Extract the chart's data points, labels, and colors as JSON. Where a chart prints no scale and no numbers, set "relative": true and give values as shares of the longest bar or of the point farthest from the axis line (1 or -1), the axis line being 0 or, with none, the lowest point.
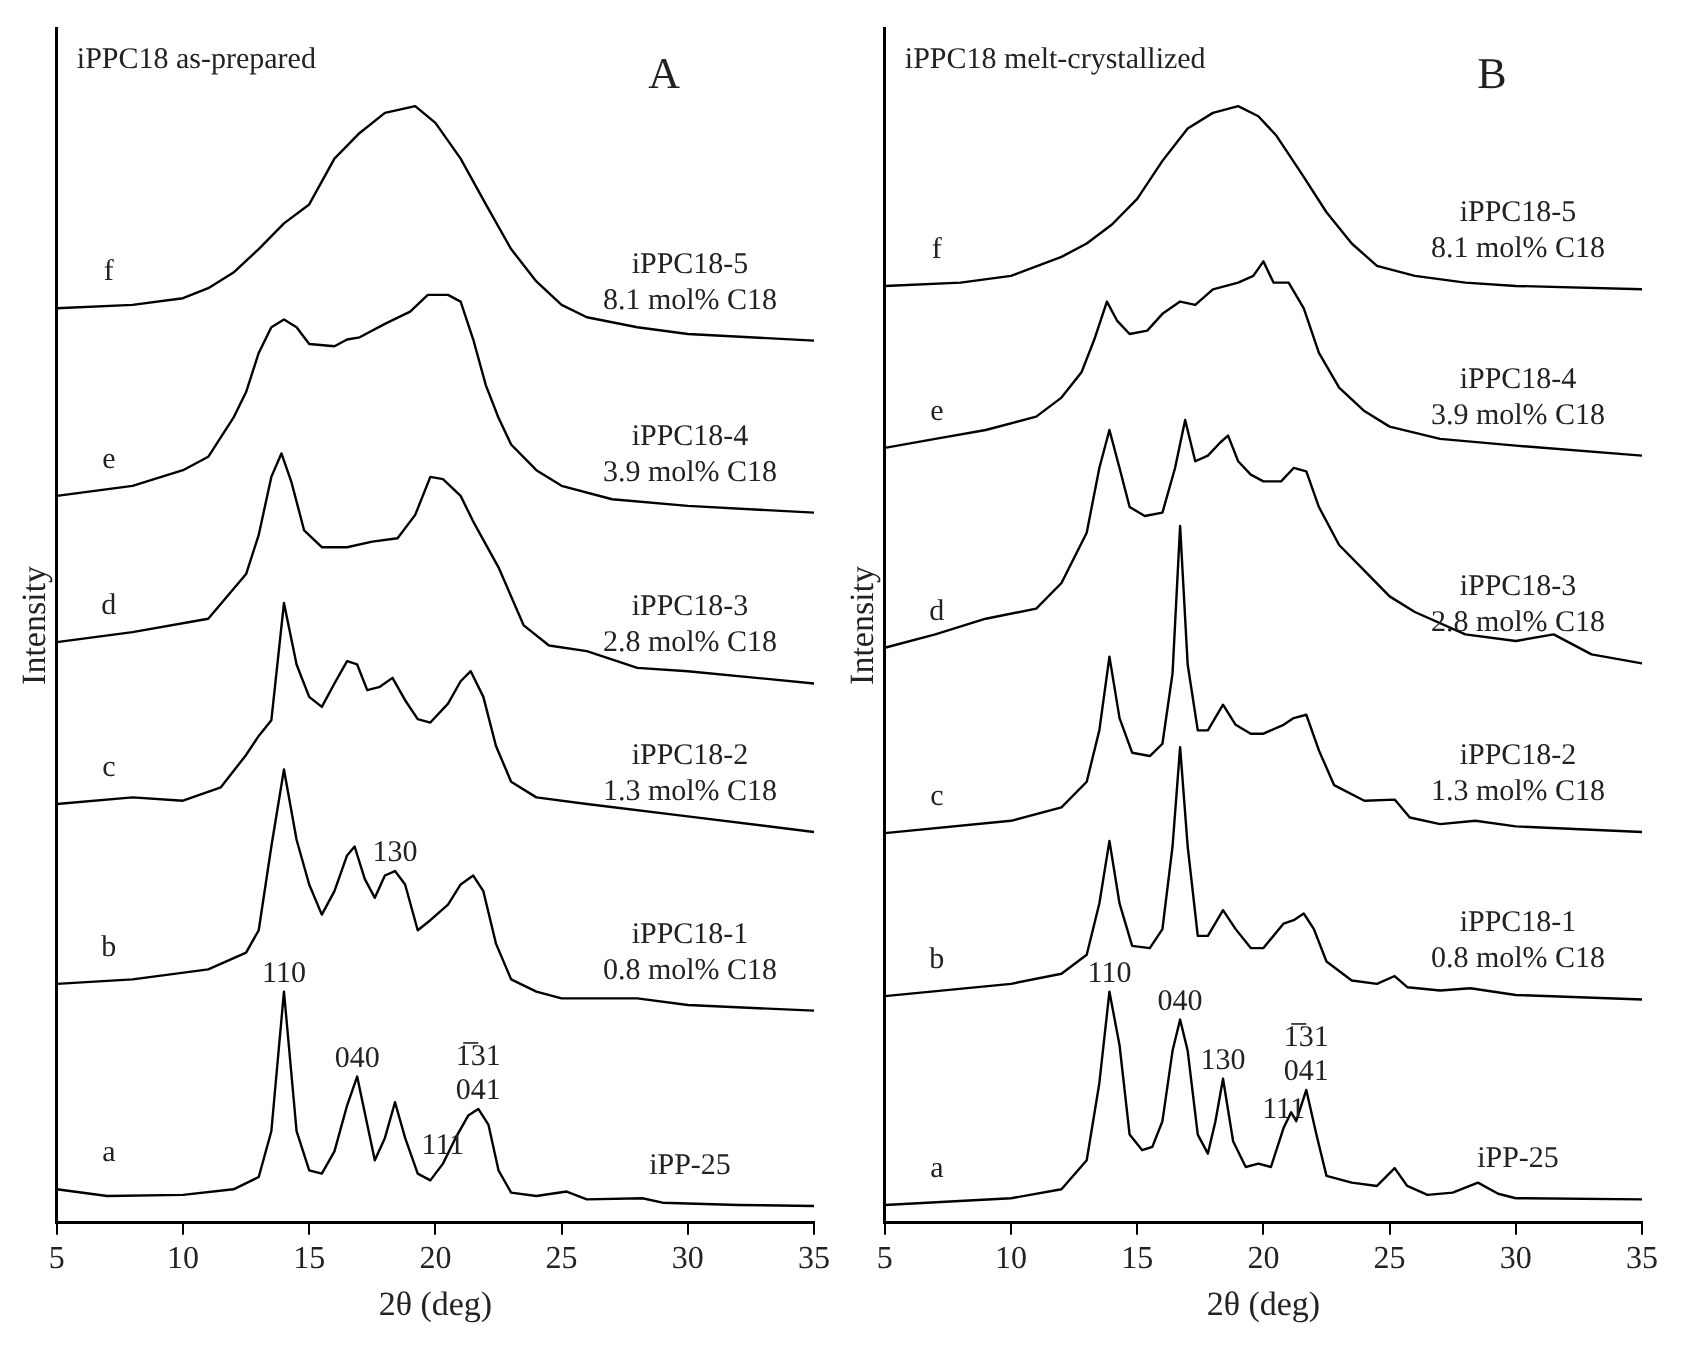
{
  "chart_data": [
    {
      "type": "line",
      "title": "iPPC18 as-prepared",
      "xlabel": "2θ (deg)",
      "ylabel": "Intensity",
      "relative": true,
      "xlim": [
        5,
        35
      ],
      "xticks": [
        5,
        10,
        15,
        20,
        25,
        30,
        35
      ],
      "tick_labels": "x",
      "grid": false,
      "legend": false,
      "marker": "none",
      "line_style": "solid",
      "annotations": [
        "A",
        "iPP-25",
        "iPPC18-1\n0.8 mol% C18",
        "iPPC18-2\n1.3 mol% C18",
        "iPPC18-3\n2.8 mol% C18",
        "iPPC18-4\n3.9 mol% C18",
        "iPPC18-5\n8.1 mol% C18",
        {
          "text": "110",
          "x": 14,
          "y": 0.207
        },
        {
          "text": "040",
          "x": 16.9,
          "y": 0.131
        },
        {
          "text": "111",
          "x": 20.3,
          "y": 0.053
        },
        {
          "text": "1̅31\n041",
          "x": 21.7,
          "y": 0.102
        },
        {
          "text": "130",
          "x": 18.4,
          "y": 0.315
        }
      ],
      "series": [
        {
          "name": "a",
          "color": "#000000",
          "x": [
            5,
            7,
            10,
            12,
            13,
            13.5,
            14,
            14.5,
            15,
            15.5,
            16,
            16.5,
            16.9,
            17.3,
            17.6,
            18,
            18.4,
            18.8,
            19.3,
            19.8,
            20.3,
            20.8,
            21.3,
            21.7,
            22.1,
            22.5,
            23,
            24,
            25.2,
            26,
            28.2,
            29,
            32,
            35
          ],
          "values": [
            0.03,
            0.024,
            0.025,
            0.03,
            0.041,
            0.082,
            0.207,
            0.082,
            0.047,
            0.044,
            0.064,
            0.105,
            0.131,
            0.088,
            0.056,
            0.076,
            0.108,
            0.076,
            0.044,
            0.038,
            0.053,
            0.076,
            0.096,
            0.102,
            0.088,
            0.047,
            0.027,
            0.024,
            0.028,
            0.021,
            0.022,
            0.018,
            0.016,
            0.015
          ]
        },
        {
          "name": "b",
          "color": "#000000",
          "x": [
            5,
            8,
            11,
            12.5,
            13,
            13.5,
            14,
            14.5,
            15,
            15.5,
            16,
            16.5,
            16.8,
            17.2,
            17.6,
            18,
            18.4,
            18.8,
            19.3,
            19.8,
            20.5,
            21,
            21.5,
            21.9,
            22.4,
            23,
            24,
            25,
            28,
            30,
            35
          ],
          "values": [
            0.214,
            0.218,
            0.227,
            0.242,
            0.262,
            0.337,
            0.406,
            0.343,
            0.303,
            0.276,
            0.297,
            0.329,
            0.337,
            0.308,
            0.291,
            0.311,
            0.315,
            0.303,
            0.262,
            0.271,
            0.285,
            0.303,
            0.311,
            0.297,
            0.25,
            0.218,
            0.207,
            0.201,
            0.201,
            0.195,
            0.19
          ]
        },
        {
          "name": "c",
          "color": "#000000",
          "x": [
            5,
            8,
            10,
            11.5,
            12.5,
            13,
            13.5,
            14,
            14.5,
            15,
            15.5,
            16,
            16.5,
            16.9,
            17.3,
            17.8,
            18.3,
            18.8,
            19.3,
            19.8,
            20.5,
            21,
            21.4,
            21.9,
            22.4,
            23,
            24,
            26,
            30,
            35
          ],
          "values": [
            0.375,
            0.381,
            0.378,
            0.39,
            0.419,
            0.436,
            0.45,
            0.555,
            0.5,
            0.471,
            0.462,
            0.483,
            0.503,
            0.5,
            0.477,
            0.48,
            0.488,
            0.468,
            0.451,
            0.448,
            0.465,
            0.485,
            0.494,
            0.471,
            0.427,
            0.395,
            0.381,
            0.375,
            0.364,
            0.35
          ]
        },
        {
          "name": "d",
          "color": "#000000",
          "x": [
            5,
            8,
            11,
            12.5,
            13,
            13.5,
            13.9,
            14.3,
            14.8,
            15.5,
            16.5,
            17.5,
            18.5,
            19.2,
            19.8,
            20.3,
            21,
            21.5,
            22.5,
            23.5,
            24.5,
            26,
            28,
            30,
            35
          ],
          "values": [
            0.52,
            0.529,
            0.541,
            0.581,
            0.616,
            0.668,
            0.689,
            0.663,
            0.62,
            0.605,
            0.605,
            0.61,
            0.613,
            0.634,
            0.668,
            0.666,
            0.651,
            0.628,
            0.587,
            0.535,
            0.517,
            0.512,
            0.497,
            0.494,
            0.483
          ]
        },
        {
          "name": "e",
          "color": "#000000",
          "x": [
            5,
            8,
            10,
            11,
            12,
            12.5,
            13,
            13.5,
            14,
            14.5,
            15,
            16,
            16.5,
            17,
            18,
            19,
            19.7,
            20.5,
            21,
            21.5,
            22,
            22.5,
            23,
            24,
            25,
            27,
            30,
            35
          ],
          "values": [
            0.651,
            0.66,
            0.674,
            0.686,
            0.721,
            0.744,
            0.779,
            0.802,
            0.809,
            0.802,
            0.787,
            0.785,
            0.791,
            0.793,
            0.805,
            0.816,
            0.831,
            0.831,
            0.825,
            0.791,
            0.75,
            0.721,
            0.697,
            0.674,
            0.66,
            0.648,
            0.642,
            0.636
          ]
        },
        {
          "name": "f",
          "color": "#000000",
          "x": [
            5,
            8,
            10,
            11,
            12,
            13,
            14,
            15,
            16,
            17,
            18,
            19.2,
            20,
            21,
            22,
            23,
            24,
            25,
            26,
            28,
            30,
            35
          ],
          "values": [
            0.819,
            0.822,
            0.828,
            0.837,
            0.851,
            0.872,
            0.895,
            0.912,
            0.953,
            0.976,
            0.994,
            1,
            0.985,
            0.953,
            0.912,
            0.872,
            0.843,
            0.822,
            0.811,
            0.802,
            0.796,
            0.79
          ]
        }
      ]
    },
    {
      "type": "line",
      "title": "iPPC18 melt-crystallized",
      "xlabel": "2θ (deg)",
      "ylabel": "Intensity",
      "relative": true,
      "xlim": [
        5,
        35
      ],
      "xticks": [
        5,
        10,
        15,
        20,
        25,
        30,
        35
      ],
      "tick_labels": "x",
      "grid": false,
      "legend": false,
      "marker": "none",
      "line_style": "solid",
      "annotations": [
        "B",
        "iPP-25",
        "iPPC18-1\n0.8 mol% C18",
        "iPPC18-2\n1.3 mol% C18",
        "iPPC18-3\n2.8 mol% C18",
        "iPPC18-4\n3.9 mol% C18",
        "iPPC18-5\n8.1 mol% C18",
        {
          "text": "110",
          "x": 13.9,
          "y": 0.207
        },
        {
          "text": "040",
          "x": 16.7,
          "y": 0.182
        },
        {
          "text": "130",
          "x": 18.4,
          "y": 0.129
        },
        {
          "text": "111",
          "x": 20.8,
          "y": 0.085
        },
        {
          "text": "1̅31\n041",
          "x": 21.7,
          "y": 0.119
        }
      ],
      "series": [
        {
          "name": "a",
          "color": "#000000",
          "x": [
            5,
            10,
            12,
            13,
            13.5,
            13.9,
            14.3,
            14.7,
            15.2,
            15.6,
            16,
            16.4,
            16.7,
            17,
            17.4,
            17.8,
            18.1,
            18.4,
            18.8,
            19.3,
            19.8,
            20.3,
            20.8,
            21.1,
            21.3,
            21.7,
            22.1,
            22.5,
            23.5,
            24.5,
            25.2,
            25.7,
            26.5,
            27.5,
            28.5,
            29.3,
            30,
            35
          ],
          "values": [
            0.016,
            0.022,
            0.03,
            0.056,
            0.125,
            0.207,
            0.159,
            0.079,
            0.065,
            0.068,
            0.091,
            0.154,
            0.182,
            0.154,
            0.079,
            0.062,
            0.091,
            0.129,
            0.073,
            0.05,
            0.053,
            0.05,
            0.085,
            0.099,
            0.091,
            0.119,
            0.079,
            0.042,
            0.036,
            0.033,
            0.049,
            0.033,
            0.025,
            0.027,
            0.036,
            0.026,
            0.022,
            0.021
          ]
        },
        {
          "name": "b",
          "color": "#000000",
          "x": [
            5,
            10,
            12,
            13,
            13.5,
            13.9,
            14.3,
            14.8,
            15.5,
            16,
            16.4,
            16.7,
            17,
            17.4,
            17.8,
            18.4,
            18.9,
            19.5,
            20,
            20.8,
            21.2,
            21.6,
            22,
            22.5,
            23.5,
            24.5,
            25.2,
            25.7,
            27,
            28.2,
            30,
            35
          ],
          "values": [
            0.203,
            0.214,
            0.223,
            0.24,
            0.286,
            0.342,
            0.286,
            0.248,
            0.246,
            0.263,
            0.337,
            0.426,
            0.337,
            0.257,
            0.257,
            0.28,
            0.263,
            0.246,
            0.246,
            0.268,
            0.271,
            0.277,
            0.263,
            0.234,
            0.217,
            0.214,
            0.221,
            0.211,
            0.208,
            0.21,
            0.204,
            0.2
          ]
        },
        {
          "name": "c",
          "color": "#000000",
          "x": [
            5,
            10,
            12,
            13,
            13.5,
            13.9,
            14.3,
            14.8,
            15.5,
            16,
            16.4,
            16.7,
            17,
            17.4,
            17.8,
            18.4,
            18.9,
            19.5,
            20,
            20.8,
            21.2,
            21.7,
            22.2,
            22.8,
            24,
            25.2,
            25.8,
            27,
            28.4,
            30,
            35
          ],
          "values": [
            0.349,
            0.36,
            0.372,
            0.395,
            0.441,
            0.507,
            0.452,
            0.421,
            0.418,
            0.429,
            0.492,
            0.624,
            0.5,
            0.441,
            0.441,
            0.464,
            0.446,
            0.438,
            0.438,
            0.446,
            0.452,
            0.455,
            0.423,
            0.392,
            0.378,
            0.379,
            0.363,
            0.357,
            0.36,
            0.355,
            0.35
          ]
        },
        {
          "name": "d",
          "color": "#000000",
          "x": [
            5,
            7,
            9,
            11,
            12,
            13,
            13.5,
            13.9,
            14.3,
            14.7,
            15.3,
            16,
            16.5,
            16.9,
            17.3,
            17.8,
            18.3,
            18.6,
            19,
            19.5,
            20,
            20.7,
            21.2,
            21.7,
            22.2,
            23,
            24,
            25,
            26,
            28,
            30,
            31.5,
            33,
            35
          ],
          "values": [
            0.515,
            0.527,
            0.541,
            0.55,
            0.573,
            0.618,
            0.676,
            0.71,
            0.676,
            0.641,
            0.633,
            0.636,
            0.676,
            0.719,
            0.682,
            0.687,
            0.699,
            0.705,
            0.682,
            0.67,
            0.664,
            0.664,
            0.676,
            0.673,
            0.641,
            0.607,
            0.584,
            0.561,
            0.547,
            0.527,
            0.521,
            0.527,
            0.509,
            0.501
          ]
        },
        {
          "name": "e",
          "color": "#000000",
          "x": [
            5,
            7,
            9,
            11,
            12,
            12.8,
            13.3,
            13.8,
            14.2,
            14.7,
            15.4,
            16,
            16.7,
            17.3,
            18,
            19,
            19.6,
            20,
            20.4,
            21,
            21.6,
            22.2,
            23,
            24,
            25,
            27,
            30,
            35
          ],
          "values": [
            0.694,
            0.702,
            0.71,
            0.722,
            0.739,
            0.762,
            0.791,
            0.825,
            0.808,
            0.796,
            0.799,
            0.814,
            0.825,
            0.822,
            0.836,
            0.842,
            0.848,
            0.861,
            0.842,
            0.842,
            0.819,
            0.779,
            0.748,
            0.727,
            0.713,
            0.702,
            0.696,
            0.687
          ]
        },
        {
          "name": "f",
          "color": "#000000",
          "x": [
            5,
            8,
            10,
            12,
            13,
            14,
            15,
            16,
            17,
            18,
            19,
            19.8,
            20.5,
            21.5,
            22.5,
            23.5,
            24.5,
            26,
            28,
            30,
            35
          ],
          "values": [
            0.839,
            0.842,
            0.848,
            0.865,
            0.877,
            0.894,
            0.917,
            0.951,
            0.98,
            0.994,
            1,
            0.991,
            0.974,
            0.94,
            0.905,
            0.877,
            0.857,
            0.848,
            0.842,
            0.839,
            0.836
          ]
        }
      ]
    }
  ]
}
